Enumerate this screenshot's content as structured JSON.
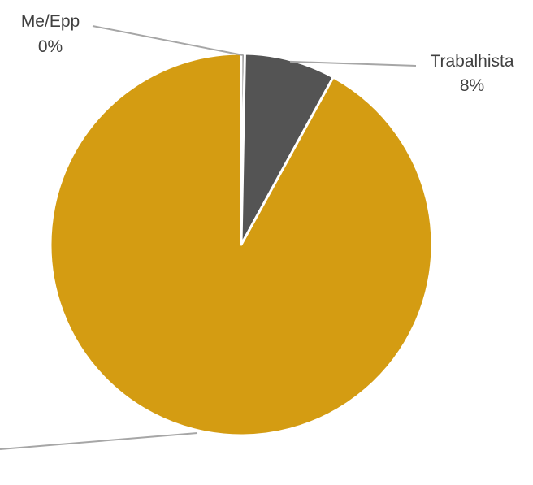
{
  "chart_data": {
    "type": "pie",
    "title": "",
    "slices": [
      {
        "label": "Me/Epp",
        "value": 0.3,
        "percent_label": "0%",
        "color": "#7f7f7f"
      },
      {
        "label": "Trabalhista",
        "value": 7.7,
        "percent_label": "8%",
        "color": "#545454"
      },
      {
        "label": "",
        "value": 92.0,
        "percent_label": "",
        "color": "#d49c12"
      }
    ],
    "start_angle_deg": 0,
    "direction": "clockwise",
    "legend": "none",
    "leader_line_color": "#a6a6a6",
    "separator_color": "#ffffff"
  }
}
